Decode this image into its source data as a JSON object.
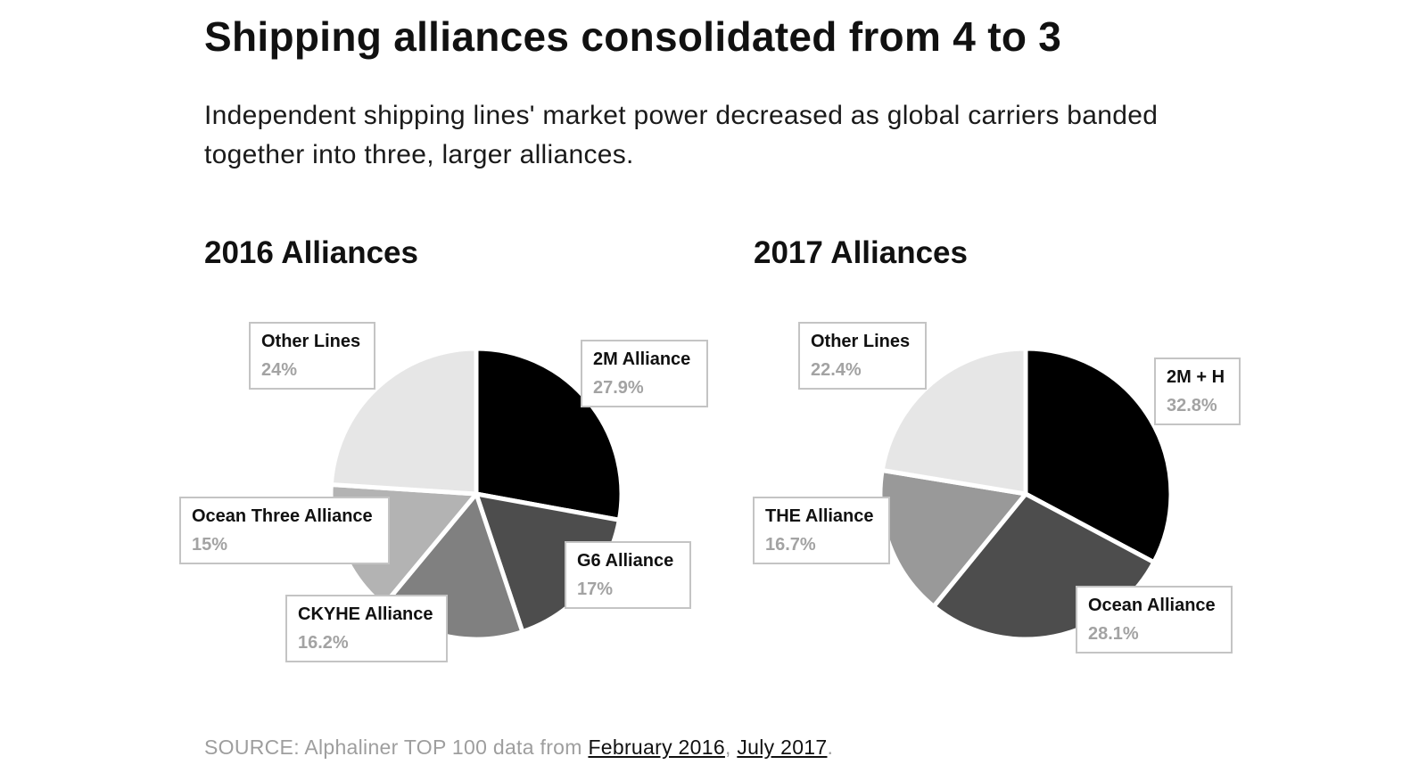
{
  "title": "Shipping alliances consolidated from 4 to 3",
  "subtitle": "Independent shipping lines' market power decreased as global carriers banded together into three, larger alliances.",
  "chart_data": [
    {
      "type": "pie",
      "title": "2016 Alliances",
      "slices": [
        {
          "label": "2M Alliance",
          "value": 27.9,
          "value_text": "27.9%",
          "color": "#000000"
        },
        {
          "label": "G6 Alliance",
          "value": 17,
          "value_text": "17%",
          "color": "#4d4d4d"
        },
        {
          "label": "CKYHE Alliance",
          "value": 16.2,
          "value_text": "16.2%",
          "color": "#808080"
        },
        {
          "label": "Ocean Three Alliance",
          "value": 15,
          "value_text": "15%",
          "color": "#b3b3b3"
        },
        {
          "label": "Other Lines",
          "value": 24,
          "value_text": "24%",
          "color": "#e6e6e6"
        }
      ]
    },
    {
      "type": "pie",
      "title": "2017 Alliances",
      "slices": [
        {
          "label": "2M + H",
          "value": 32.8,
          "value_text": "32.8%",
          "color": "#000000"
        },
        {
          "label": "Ocean Alliance",
          "value": 28.1,
          "value_text": "28.1%",
          "color": "#4d4d4d"
        },
        {
          "label": "THE Alliance",
          "value": 16.7,
          "value_text": "16.7%",
          "color": "#999999"
        },
        {
          "label": "Other Lines",
          "value": 22.4,
          "value_text": "22.4%",
          "color": "#e6e6e6"
        }
      ]
    }
  ],
  "source": {
    "prefix": "SOURCE: Alphaliner TOP 100 data from ",
    "link1": "February 2016",
    "separator": ", ",
    "link2": "July 2017",
    "suffix": "."
  }
}
